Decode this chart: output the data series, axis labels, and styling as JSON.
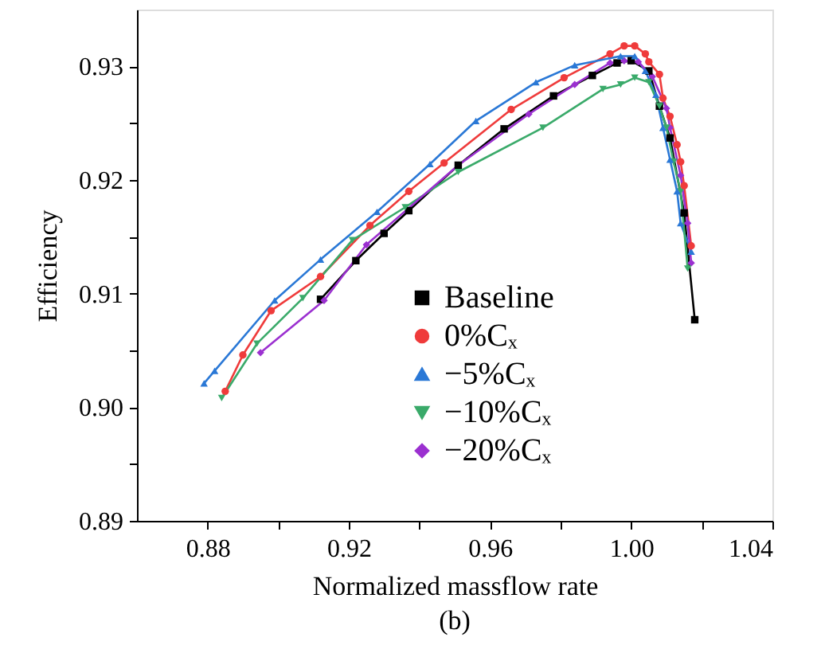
{
  "chart_data": {
    "type": "line",
    "xlabel": "Normalized massflow rate",
    "ylabel": "Efficiency",
    "annotations": [
      "(b)"
    ],
    "xlim": [
      0.86,
      1.04
    ],
    "xticks": [
      0.88,
      {
        "value": 0.9,
        "label": null
      },
      {
        "value": 0.92,
        "label": "0.92"
      },
      {
        "value": 0.94,
        "label": null
      },
      {
        "value": 0.96,
        "label": "0.96"
      },
      {
        "value": 0.98,
        "label": null
      },
      {
        "value": 1.0,
        "label": "1.00"
      },
      {
        "value": 1.02,
        "label": null
      },
      {
        "value": 1.04,
        "label": "1.04"
      }
    ],
    "ylim": [
      0.89,
      0.935
    ],
    "yticks": [
      {
        "value": 0.89,
        "label": "0.89"
      },
      {
        "value": 0.895,
        "label": null
      },
      {
        "value": 0.9,
        "label": "0.90"
      },
      {
        "value": 0.905,
        "label": null
      },
      {
        "value": 0.91,
        "label": "0.91"
      },
      {
        "value": 0.915,
        "label": null
      },
      {
        "value": 0.92,
        "label": "0.92"
      },
      {
        "value": 0.925,
        "label": null
      },
      {
        "value": 0.93,
        "label": "0.93"
      }
    ],
    "grid": false,
    "legend": "bottom right",
    "line_style": "solid",
    "series": [
      {
        "name": "Baseline",
        "color": "#000000",
        "marker": "square",
        "x": [
          0.912,
          0.922,
          0.93,
          0.937,
          0.951,
          0.964,
          0.978,
          0.989,
          0.996,
          1.0,
          1.005,
          1.008,
          1.011,
          1.015,
          1.018
        ],
        "values": [
          0.9095,
          0.9129,
          0.9153,
          0.9173,
          0.9213,
          0.9245,
          0.9274,
          0.9292,
          0.9303,
          0.9305,
          0.9296,
          0.9265,
          0.9237,
          0.9171,
          0.9077
        ]
      },
      {
        "name": "0%Cₓ",
        "color": "#ef3b3b",
        "marker": "circle",
        "x": [
          0.885,
          0.89,
          0.898,
          0.912,
          0.926,
          0.937,
          0.947,
          0.966,
          0.981,
          0.994,
          0.998,
          1.001,
          1.004,
          1.005,
          1.008,
          1.009,
          1.011,
          1.013,
          1.014,
          1.015,
          1.017
        ],
        "values": [
          0.9014,
          0.9046,
          0.9085,
          0.9115,
          0.916,
          0.919,
          0.9215,
          0.9262,
          0.929,
          0.9311,
          0.9318,
          0.9318,
          0.9311,
          0.9304,
          0.9293,
          0.9272,
          0.9256,
          0.9231,
          0.9216,
          0.9195,
          0.9142
        ]
      },
      {
        "name": "−5%Cₓ",
        "color": "#2a78d6",
        "marker": "triangle",
        "x": [
          0.879,
          0.882,
          0.899,
          0.912,
          0.928,
          0.943,
          0.956,
          0.973,
          0.984,
          0.997,
          1.001,
          1.004,
          1.007,
          1.009,
          1.011,
          1.013,
          1.014,
          1.017
        ],
        "values": [
          0.9021,
          0.9032,
          0.9094,
          0.913,
          0.9172,
          0.9214,
          0.9252,
          0.9286,
          0.9301,
          0.9309,
          0.9309,
          0.9296,
          0.9275,
          0.9246,
          0.9218,
          0.919,
          0.9162,
          0.9137
        ]
      },
      {
        "name": "−10%Cₓ",
        "color": "#3aaa6a",
        "marker": "triangle-down",
        "x": [
          0.884,
          0.894,
          0.907,
          0.921,
          0.936,
          0.951,
          0.975,
          0.992,
          0.997,
          1.001,
          1.005,
          1.008,
          1.01,
          1.012,
          1.014,
          1.016
        ],
        "values": [
          0.9008,
          0.9056,
          0.9096,
          0.9147,
          0.9176,
          0.9207,
          0.9246,
          0.928,
          0.9284,
          0.929,
          0.9286,
          0.9265,
          0.9246,
          0.9216,
          0.919,
          0.9122
        ]
      },
      {
        "name": "−20%Cₓ",
        "color": "#9b30d0",
        "marker": "diamond",
        "x": [
          0.895,
          0.913,
          0.925,
          0.951,
          0.971,
          0.984,
          0.994,
          0.998,
          1.002,
          1.006,
          1.01,
          1.011,
          1.014,
          1.016,
          1.017
        ],
        "values": [
          0.9048,
          0.9094,
          0.9143,
          0.9213,
          0.9258,
          0.9284,
          0.9303,
          0.9305,
          0.9304,
          0.9291,
          0.9263,
          0.9246,
          0.9204,
          0.9162,
          0.9127
        ]
      }
    ]
  }
}
